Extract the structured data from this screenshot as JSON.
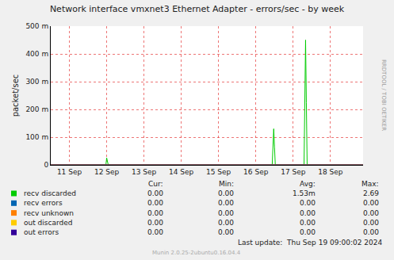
{
  "chart_data": {
    "type": "line",
    "title": "Network interface vmxnet3 Ethernet Adapter - errors/sec - by week",
    "y_label": "packet/sec",
    "x": [
      11,
      12.479,
      12.5,
      12.521,
      12.542,
      16.938,
      16.958,
      16.979,
      17.0,
      17.021,
      17.792,
      17.813,
      17.833,
      17.854,
      17.875,
      19.375
    ],
    "series": [
      {
        "name": "recv discarded",
        "color": "#00CC00",
        "values": [
          0,
          0,
          0.025,
          0.01,
          0,
          0,
          0.065,
          0.13,
          0.065,
          0,
          0,
          0.225,
          0.45,
          0.225,
          0,
          0
        ],
        "stats": [
          "0.00",
          "0.00",
          "1.53m",
          "2.69"
        ]
      },
      {
        "name": "recv errors",
        "color": "#0066B3",
        "values": [
          0,
          0,
          0,
          0,
          0,
          0,
          0,
          0,
          0,
          0,
          0,
          0,
          0,
          0,
          0,
          0
        ],
        "stats": [
          "0.00",
          "0.00",
          "0.00",
          "0.00"
        ]
      },
      {
        "name": "recv unknown",
        "color": "#FF8000",
        "values": [
          0,
          0,
          0,
          0,
          0,
          0,
          0,
          0,
          0,
          0,
          0,
          0,
          0,
          0,
          0,
          0
        ],
        "stats": [
          "0.00",
          "0.00",
          "0.00",
          "0.00"
        ]
      },
      {
        "name": "out discarded",
        "color": "#FFCC00",
        "values": [
          0,
          0,
          0,
          0,
          0,
          0,
          0,
          0,
          0,
          0,
          0,
          0,
          0,
          0,
          0,
          0
        ],
        "stats": [
          "0.00",
          "0.00",
          "0.00",
          "0.00"
        ]
      },
      {
        "name": "out errors",
        "color": "#330099",
        "values": [
          0,
          0,
          0,
          0,
          0,
          0,
          0,
          0,
          0,
          0,
          0,
          0,
          0,
          0,
          0,
          0
        ],
        "stats": [
          "0.00",
          "0.00",
          "0.00",
          "0.00"
        ]
      }
    ],
    "stats_columns": [
      "Cur:",
      "Min:",
      "Avg:",
      "Max:"
    ],
    "xlim": [
      11,
      19.375
    ],
    "xticks": [
      {
        "value": 11.5,
        "label": "11 Sep"
      },
      {
        "value": 12.5,
        "label": "12 Sep"
      },
      {
        "value": 13.5,
        "label": "13 Sep"
      },
      {
        "value": 14.5,
        "label": "14 Sep"
      },
      {
        "value": 15.5,
        "label": "15 Sep"
      },
      {
        "value": 16.5,
        "label": "16 Sep"
      },
      {
        "value": 17.5,
        "label": "17 Sep"
      },
      {
        "value": 18.5,
        "label": "18 Sep"
      }
    ],
    "ylim": [
      0,
      0.5
    ],
    "yticks": [
      0,
      {
        "value": 0.1,
        "label": "100 m"
      },
      {
        "value": 0.2,
        "label": "200 m"
      },
      {
        "value": 0.3,
        "label": "300 m"
      },
      {
        "value": 0.4,
        "label": "400 m"
      },
      {
        "value": 0.5,
        "label": "500 m"
      }
    ],
    "grid": true,
    "last_update": "Last update:  Thu Sep 19 09:00:02 2024",
    "footer": "Munin 2.0.25-2ubuntu0.16.04.4",
    "watermark": "RRDTOOL / TOBI OETIKER"
  }
}
